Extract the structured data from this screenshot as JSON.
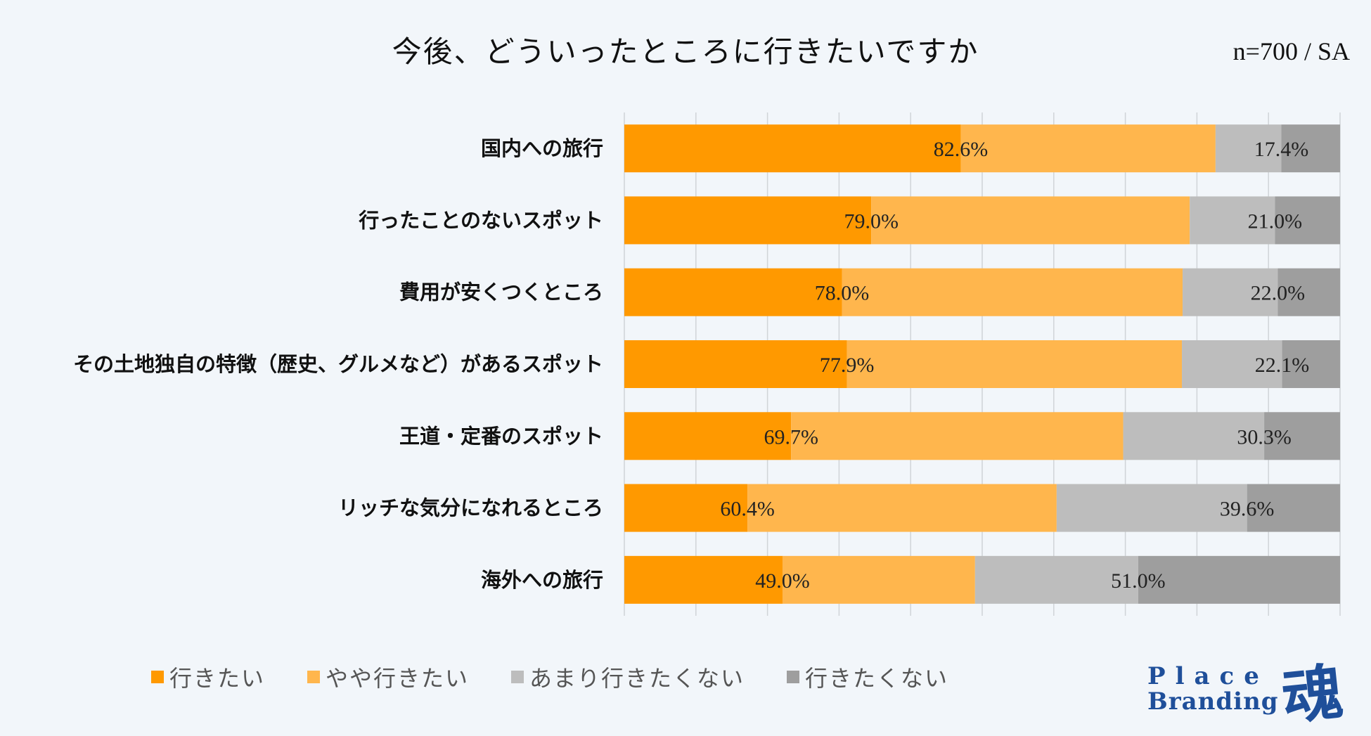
{
  "header": {
    "title": "今後、どういったところに行きたいですか",
    "sample": "n=700 / SA"
  },
  "chart_data": {
    "type": "bar",
    "orientation": "horizontal",
    "stacked": true,
    "categories": [
      "国内への旅行",
      "行ったことのないスポット",
      "費用が安くつくところ",
      "その土地独自の特徴（歴史、グルメなど）があるスポット",
      "王道・定番のスポット",
      "リッチな気分になれるところ",
      "海外への旅行"
    ],
    "series": [
      {
        "name": "行きたい",
        "color": "#ff9900",
        "values": [
          47.0,
          34.5,
          30.4,
          31.1,
          23.3,
          17.2,
          22.1
        ]
      },
      {
        "name": "やや行きたい",
        "color": "#ffb64d",
        "values": [
          35.6,
          44.5,
          47.6,
          46.8,
          46.4,
          43.2,
          26.9
        ]
      },
      {
        "name": "あまり行きたくない",
        "color": "#bdbdbd",
        "values": [
          9.2,
          11.9,
          13.3,
          14.0,
          19.7,
          26.6,
          22.8
        ]
      },
      {
        "name": "行きたくない",
        "color": "#9e9e9e",
        "values": [
          8.2,
          9.1,
          8.7,
          8.1,
          10.6,
          13.0,
          28.2
        ]
      }
    ],
    "positive_totals": [
      "82.6%",
      "79.0%",
      "78.0%",
      "77.9%",
      "69.7%",
      "60.4%",
      "49.0%"
    ],
    "negative_totals": [
      "17.4%",
      "21.0%",
      "22.0%",
      "22.1%",
      "30.3%",
      "39.6%",
      "51.0%"
    ],
    "xlim": [
      0,
      100
    ],
    "grid": true,
    "legend": "bottom"
  },
  "brand": {
    "line1": "Place",
    "line2": "Branding",
    "mark": "魂",
    "color": "#1f4f9a"
  }
}
